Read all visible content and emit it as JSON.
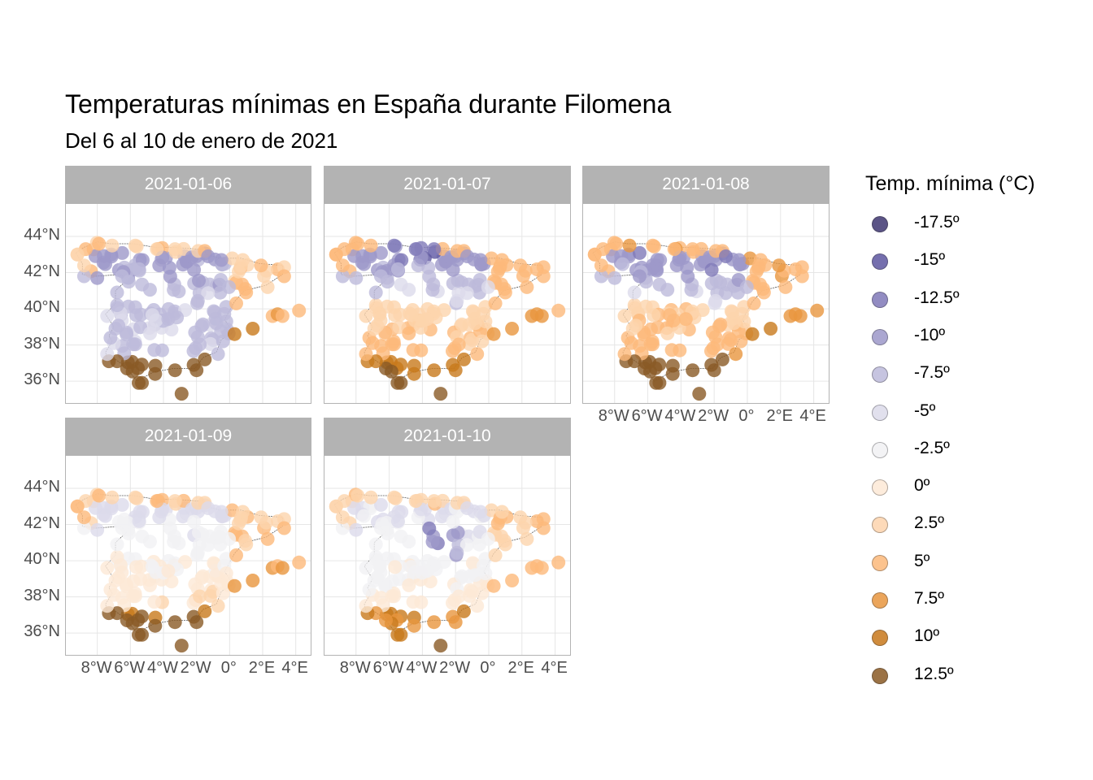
{
  "title": "Temperaturas mínimas en España durante Filomena",
  "subtitle": "Del 6 al 10 de enero de 2021",
  "legend": {
    "title": "Temp. mínima (°C)",
    "items": [
      {
        "label": "-17.5º",
        "value": -17.5,
        "color": "#3f3772"
      },
      {
        "label": "-15º",
        "value": -15,
        "color": "#5e56a0"
      },
      {
        "label": "-12.5º",
        "value": -12.5,
        "color": "#8079b8"
      },
      {
        "label": "-10º",
        "value": -10,
        "color": "#9d98c9"
      },
      {
        "label": "-7.5º",
        "value": -7.5,
        "color": "#bdbadb"
      },
      {
        "label": "-5º",
        "value": -5,
        "color": "#dcdbeb"
      },
      {
        "label": "-2.5º",
        "value": -2.5,
        "color": "#f1f1f4"
      },
      {
        "label": "0º",
        "value": 0,
        "color": "#fde9d6"
      },
      {
        "label": "2.5º",
        "value": 2.5,
        "color": "#fdd4ad"
      },
      {
        "label": "5º",
        "value": 5,
        "color": "#fcb97b"
      },
      {
        "label": "7.5º",
        "value": 7.5,
        "color": "#e8963f"
      },
      {
        "label": "10º",
        "value": 10,
        "color": "#c8791c"
      },
      {
        "label": "12.5º",
        "value": 12.5,
        "color": "#8a5a25"
      }
    ]
  },
  "axes": {
    "y_ticks": [
      "44°N",
      "42°N",
      "40°N",
      "38°N",
      "36°N"
    ],
    "x_ticks": [
      "8°W",
      "6°W",
      "4°W",
      "2°W",
      "0°",
      "2°E",
      "4°E"
    ]
  },
  "panels": [
    {
      "date": "2021-01-06",
      "regime": 0
    },
    {
      "date": "2021-01-07",
      "regime": 1
    },
    {
      "date": "2021-01-08",
      "regime": 2
    },
    {
      "date": "2021-01-09",
      "regime": 3
    },
    {
      "date": "2021-01-10",
      "regime": 4
    }
  ]
}
